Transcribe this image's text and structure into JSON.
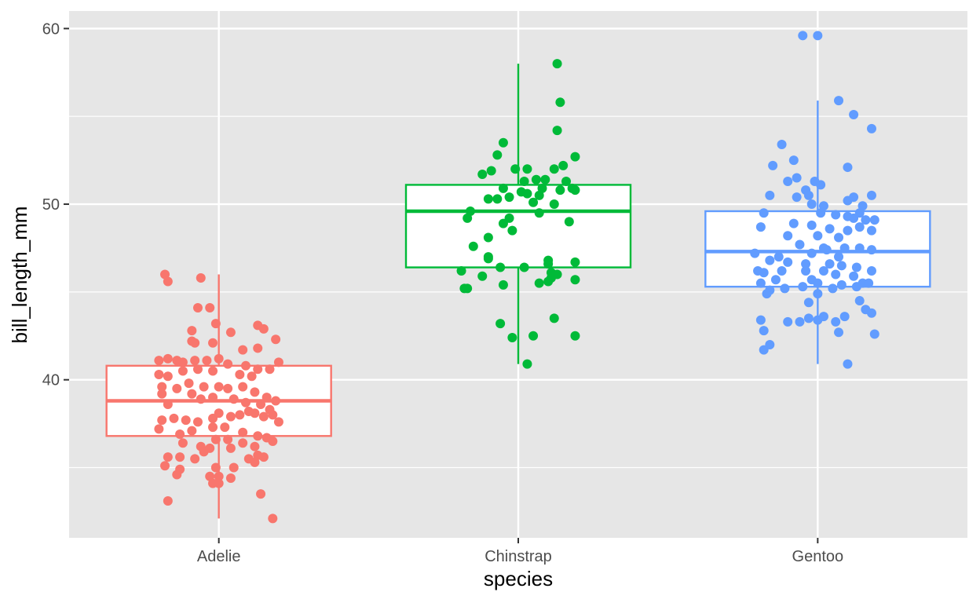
{
  "chart_data": {
    "type": "box",
    "xlabel": "species",
    "ylabel": "bill_length_mm",
    "ylim": [
      31,
      61
    ],
    "y_ticks": [
      40,
      50,
      60
    ],
    "y_minor_ticks": [
      35,
      45,
      55
    ],
    "categories": [
      "Adelie",
      "Chinstrap",
      "Gentoo"
    ],
    "grid": true,
    "legend": "none",
    "background": "#E6E6E6",
    "series": [
      {
        "category": "Adelie",
        "color": "#F8766D",
        "box": {
          "whisker_low": 32.1,
          "q1": 36.8,
          "median": 38.8,
          "q3": 40.8,
          "whisker_high": 46.0
        },
        "points": [
          [
            -0.18,
            46.0
          ],
          [
            -0.17,
            45.6
          ],
          [
            -0.06,
            45.8
          ],
          [
            -0.07,
            44.1
          ],
          [
            -0.03,
            44.1
          ],
          [
            -0.01,
            43.2
          ],
          [
            0.04,
            42.7
          ],
          [
            -0.09,
            42.8
          ],
          [
            0.13,
            43.1
          ],
          [
            0.15,
            42.9
          ],
          [
            0.19,
            42.3
          ],
          [
            -0.09,
            42.2
          ],
          [
            -0.08,
            42.1
          ],
          [
            -0.02,
            42.1
          ],
          [
            0.08,
            41.7
          ],
          [
            0.13,
            41.8
          ],
          [
            -0.2,
            41.1
          ],
          [
            -0.17,
            41.2
          ],
          [
            -0.14,
            41.1
          ],
          [
            -0.12,
            41.0
          ],
          [
            -0.08,
            41.1
          ],
          [
            -0.04,
            41.1
          ],
          [
            0.0,
            41.2
          ],
          [
            0.03,
            40.9
          ],
          [
            0.09,
            40.8
          ],
          [
            0.13,
            40.6
          ],
          [
            0.17,
            40.6
          ],
          [
            0.2,
            41.0
          ],
          [
            -0.2,
            40.3
          ],
          [
            -0.17,
            40.2
          ],
          [
            -0.12,
            40.5
          ],
          [
            -0.07,
            40.6
          ],
          [
            -0.02,
            40.5
          ],
          [
            0.07,
            40.3
          ],
          [
            0.11,
            40.2
          ],
          [
            -0.19,
            39.6
          ],
          [
            -0.14,
            39.5
          ],
          [
            -0.1,
            39.8
          ],
          [
            -0.05,
            39.6
          ],
          [
            0.0,
            39.6
          ],
          [
            0.03,
            39.5
          ],
          [
            0.08,
            39.6
          ],
          [
            0.12,
            39.3
          ],
          [
            0.16,
            39.0
          ],
          [
            -0.19,
            39.2
          ],
          [
            -0.17,
            38.6
          ],
          [
            -0.09,
            39.2
          ],
          [
            -0.06,
            38.9
          ],
          [
            -0.02,
            39.0
          ],
          [
            0.05,
            38.9
          ],
          [
            0.09,
            38.7
          ],
          [
            0.14,
            38.6
          ],
          [
            0.17,
            38.3
          ],
          [
            0.19,
            38.8
          ],
          [
            -0.19,
            37.7
          ],
          [
            -0.15,
            37.8
          ],
          [
            -0.11,
            37.7
          ],
          [
            -0.07,
            37.6
          ],
          [
            -0.02,
            37.8
          ],
          [
            0.0,
            38.1
          ],
          [
            0.04,
            37.9
          ],
          [
            0.07,
            38.0
          ],
          [
            0.1,
            38.2
          ],
          [
            0.12,
            38.1
          ],
          [
            0.15,
            37.9
          ],
          [
            0.18,
            38.0
          ],
          [
            0.2,
            37.6
          ],
          [
            -0.2,
            37.2
          ],
          [
            -0.13,
            36.9
          ],
          [
            -0.09,
            37.1
          ],
          [
            -0.02,
            37.3
          ],
          [
            0.02,
            37.3
          ],
          [
            0.08,
            37.0
          ],
          [
            0.13,
            36.8
          ],
          [
            0.16,
            36.7
          ],
          [
            0.18,
            36.5
          ],
          [
            -0.12,
            36.4
          ],
          [
            -0.06,
            36.2
          ],
          [
            -0.01,
            36.6
          ],
          [
            0.03,
            36.6
          ],
          [
            0.08,
            36.4
          ],
          [
            0.12,
            36.2
          ],
          [
            -0.17,
            35.6
          ],
          [
            -0.13,
            35.6
          ],
          [
            -0.05,
            35.9
          ],
          [
            -0.03,
            36.1
          ],
          [
            0.04,
            36.1
          ],
          [
            0.1,
            35.5
          ],
          [
            0.13,
            35.7
          ],
          [
            0.15,
            35.6
          ],
          [
            -0.18,
            35.1
          ],
          [
            -0.13,
            34.9
          ],
          [
            -0.08,
            35.5
          ],
          [
            -0.01,
            35.0
          ],
          [
            0.05,
            35.0
          ],
          [
            0.12,
            35.3
          ],
          [
            -0.14,
            34.6
          ],
          [
            -0.03,
            34.5
          ],
          [
            0.0,
            34.5
          ],
          [
            0.04,
            34.4
          ],
          [
            -0.02,
            34.1
          ],
          [
            0.0,
            34.1
          ],
          [
            -0.17,
            33.1
          ],
          [
            0.14,
            33.5
          ],
          [
            0.18,
            32.1
          ]
        ]
      },
      {
        "category": "Chinstrap",
        "color": "#00BA38",
        "box": {
          "whisker_low": 40.9,
          "q1": 46.4,
          "median": 49.6,
          "q3": 51.1,
          "whisker_high": 58.0
        },
        "points": [
          [
            0.13,
            58.0
          ],
          [
            0.14,
            55.8
          ],
          [
            0.13,
            54.2
          ],
          [
            -0.05,
            53.5
          ],
          [
            -0.07,
            52.8
          ],
          [
            0.19,
            52.7
          ],
          [
            0.15,
            52.2
          ],
          [
            -0.01,
            52.0
          ],
          [
            0.03,
            52.0
          ],
          [
            0.12,
            52.0
          ],
          [
            -0.09,
            51.9
          ],
          [
            -0.12,
            51.7
          ],
          [
            0.06,
            51.4
          ],
          [
            0.09,
            51.4
          ],
          [
            0.16,
            51.3
          ],
          [
            0.02,
            51.3
          ],
          [
            -0.05,
            50.9
          ],
          [
            0.08,
            50.9
          ],
          [
            0.14,
            50.8
          ],
          [
            0.18,
            50.9
          ],
          [
            0.19,
            50.8
          ],
          [
            0.01,
            50.7
          ],
          [
            0.03,
            50.6
          ],
          [
            0.07,
            50.5
          ],
          [
            -0.03,
            50.4
          ],
          [
            -0.07,
            50.3
          ],
          [
            -0.1,
            50.3
          ],
          [
            0.05,
            50.1
          ],
          [
            0.12,
            50.0
          ],
          [
            -0.16,
            49.6
          ],
          [
            -0.17,
            49.2
          ],
          [
            -0.03,
            49.2
          ],
          [
            0.07,
            49.5
          ],
          [
            -0.05,
            48.9
          ],
          [
            0.17,
            49.0
          ],
          [
            -0.02,
            48.5
          ],
          [
            -0.1,
            48.1
          ],
          [
            -0.15,
            47.6
          ],
          [
            -0.1,
            47.0
          ],
          [
            -0.1,
            46.9
          ],
          [
            0.1,
            46.8
          ],
          [
            0.1,
            46.6
          ],
          [
            -0.19,
            46.2
          ],
          [
            -0.06,
            46.4
          ],
          [
            0.02,
            46.4
          ],
          [
            0.11,
            46.1
          ],
          [
            0.13,
            46.0
          ],
          [
            0.19,
            46.7
          ],
          [
            -0.12,
            45.9
          ],
          [
            0.11,
            45.8
          ],
          [
            0.19,
            45.7
          ],
          [
            0.1,
            45.6
          ],
          [
            0.07,
            45.5
          ],
          [
            -0.05,
            45.4
          ],
          [
            -0.17,
            45.2
          ],
          [
            -0.18,
            45.2
          ],
          [
            -0.06,
            43.2
          ],
          [
            0.12,
            43.5
          ],
          [
            -0.02,
            42.4
          ],
          [
            0.05,
            42.5
          ],
          [
            0.19,
            42.5
          ],
          [
            0.03,
            40.9
          ]
        ]
      },
      {
        "category": "Gentoo",
        "color": "#619CFF",
        "box": {
          "whisker_low": 40.9,
          "q1": 45.3,
          "median": 47.3,
          "q3": 49.6,
          "whisker_high": 55.9
        },
        "points": [
          [
            -0.05,
            59.6
          ],
          [
            0.0,
            59.6
          ],
          [
            0.07,
            55.9
          ],
          [
            0.12,
            55.1
          ],
          [
            0.18,
            54.3
          ],
          [
            -0.12,
            53.4
          ],
          [
            -0.08,
            52.5
          ],
          [
            -0.15,
            52.2
          ],
          [
            0.1,
            52.1
          ],
          [
            -0.07,
            51.5
          ],
          [
            -0.1,
            51.3
          ],
          [
            -0.01,
            51.3
          ],
          [
            0.01,
            51.1
          ],
          [
            -0.04,
            50.8
          ],
          [
            -0.03,
            50.5
          ],
          [
            -0.16,
            50.5
          ],
          [
            -0.07,
            50.4
          ],
          [
            0.1,
            50.2
          ],
          [
            0.12,
            50.4
          ],
          [
            0.18,
            50.5
          ],
          [
            -0.02,
            50.0
          ],
          [
            0.02,
            49.9
          ],
          [
            0.15,
            49.9
          ],
          [
            0.14,
            49.5
          ],
          [
            -0.18,
            49.5
          ],
          [
            0.01,
            49.5
          ],
          [
            0.06,
            49.4
          ],
          [
            0.1,
            49.3
          ],
          [
            0.12,
            49.2
          ],
          [
            0.16,
            49.1
          ],
          [
            0.19,
            49.1
          ],
          [
            -0.08,
            48.9
          ],
          [
            -0.02,
            48.8
          ],
          [
            0.04,
            48.6
          ],
          [
            0.14,
            48.7
          ],
          [
            -0.19,
            48.7
          ],
          [
            0.1,
            48.5
          ],
          [
            0.18,
            48.5
          ],
          [
            -0.1,
            48.2
          ],
          [
            0.0,
            48.2
          ],
          [
            0.07,
            48.1
          ],
          [
            -0.06,
            47.7
          ],
          [
            0.02,
            47.5
          ],
          [
            0.09,
            47.5
          ],
          [
            0.14,
            47.5
          ],
          [
            0.18,
            47.4
          ],
          [
            -0.21,
            47.2
          ],
          [
            -0.13,
            47.0
          ],
          [
            -0.02,
            47.2
          ],
          [
            0.03,
            47.4
          ],
          [
            0.07,
            47.0
          ],
          [
            -0.16,
            46.8
          ],
          [
            -0.1,
            46.7
          ],
          [
            -0.04,
            46.6
          ],
          [
            0.04,
            46.6
          ],
          [
            0.08,
            46.5
          ],
          [
            0.13,
            46.4
          ],
          [
            0.18,
            46.2
          ],
          [
            -0.2,
            46.2
          ],
          [
            -0.18,
            46.1
          ],
          [
            -0.12,
            46.2
          ],
          [
            -0.04,
            46.2
          ],
          [
            0.02,
            46.2
          ],
          [
            0.06,
            46.0
          ],
          [
            0.12,
            45.9
          ],
          [
            -0.14,
            45.7
          ],
          [
            -0.02,
            45.7
          ],
          [
            0.0,
            45.5
          ],
          [
            0.08,
            45.4
          ],
          [
            0.15,
            45.5
          ],
          [
            0.17,
            45.5
          ],
          [
            -0.19,
            45.5
          ],
          [
            -0.16,
            45.1
          ],
          [
            -0.11,
            45.2
          ],
          [
            -0.05,
            45.3
          ],
          [
            0.05,
            45.2
          ],
          [
            0.13,
            45.3
          ],
          [
            -0.17,
            44.9
          ],
          [
            0.0,
            44.9
          ],
          [
            -0.03,
            44.4
          ],
          [
            0.14,
            44.5
          ],
          [
            0.16,
            44.0
          ],
          [
            0.18,
            43.8
          ],
          [
            0.09,
            43.6
          ],
          [
            0.06,
            43.3
          ],
          [
            -0.03,
            43.5
          ],
          [
            -0.06,
            43.3
          ],
          [
            -0.1,
            43.3
          ],
          [
            0.02,
            43.6
          ],
          [
            0.0,
            43.4
          ],
          [
            -0.19,
            43.4
          ],
          [
            -0.18,
            42.8
          ],
          [
            0.07,
            42.7
          ],
          [
            -0.16,
            42.0
          ],
          [
            -0.18,
            41.7
          ],
          [
            0.19,
            42.6
          ],
          [
            0.1,
            40.9
          ]
        ]
      }
    ]
  }
}
